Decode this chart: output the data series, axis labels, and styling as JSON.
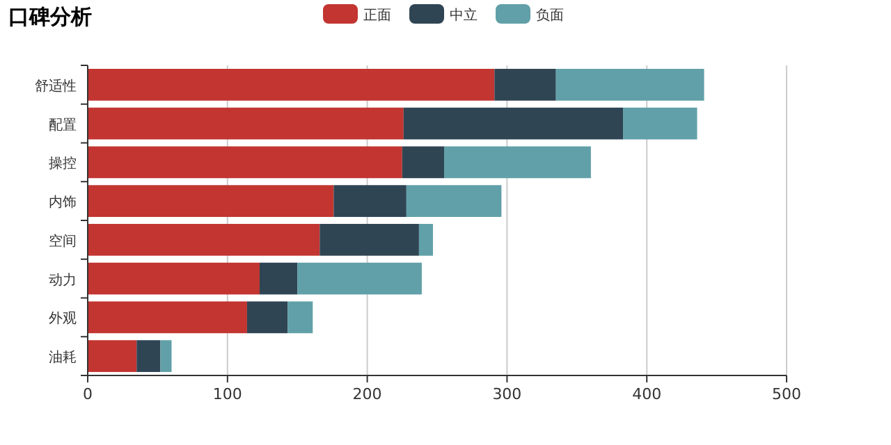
{
  "chart_data": {
    "type": "bar",
    "title": "口碑分析",
    "orientation": "horizontal",
    "stacked": true,
    "categories": [
      "舒适性",
      "配置",
      "操控",
      "内饰",
      "空间",
      "动力",
      "外观",
      "油耗"
    ],
    "series": [
      {
        "name": "正面",
        "color": "#c23531",
        "values": [
          291,
          226,
          225,
          176,
          166,
          123,
          114,
          35
        ]
      },
      {
        "name": "中立",
        "color": "#2f4554",
        "values": [
          44,
          157,
          30,
          52,
          71,
          27,
          29,
          17
        ]
      },
      {
        "name": "负面",
        "color": "#61a0a8",
        "values": [
          106,
          53,
          105,
          68,
          10,
          89,
          18,
          8
        ]
      }
    ],
    "xlim": [
      0,
      500
    ],
    "xticks": [
      0,
      100,
      200,
      300,
      400,
      500
    ],
    "grid": "x",
    "legend": "top"
  }
}
